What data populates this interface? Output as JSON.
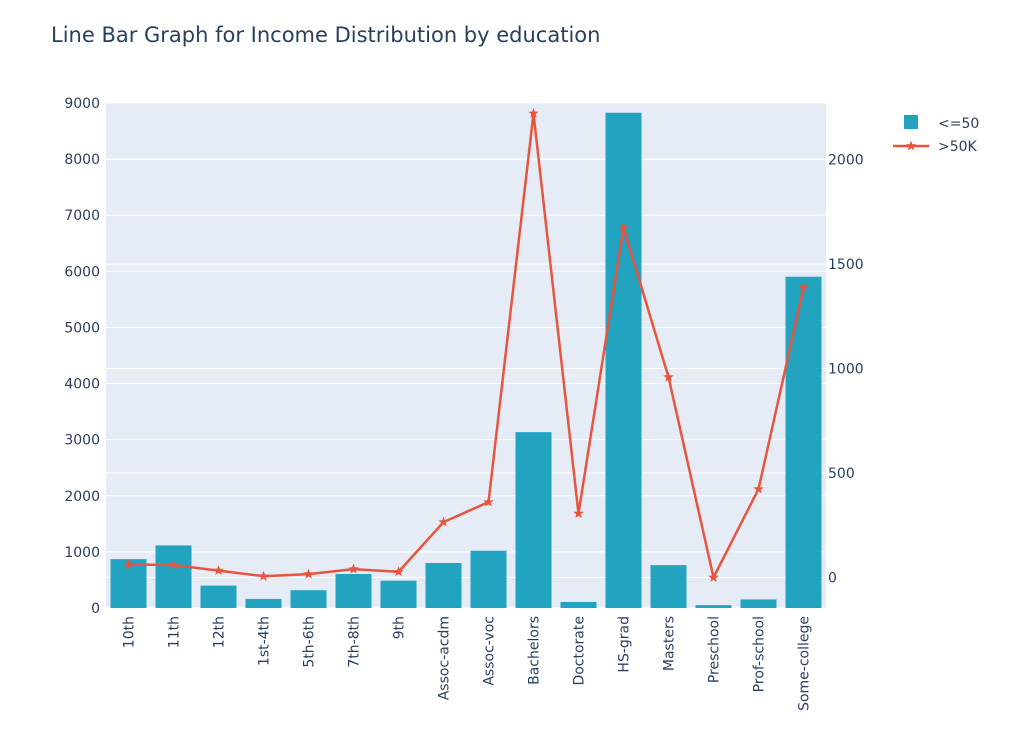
{
  "chart_data": {
    "type": "bar",
    "title": "Line Bar Graph for Income Distribution by education",
    "xlabel": "",
    "ylabel": "",
    "categories": [
      "10th",
      "11th",
      "12th",
      "1st-4th",
      "5th-6th",
      "7th-8th",
      "9th",
      "Assoc-acdm",
      "Assoc-voc",
      "Bachelors",
      "Doctorate",
      "HS-grad",
      "Masters",
      "Preschool",
      "Prof-school",
      "Some-college"
    ],
    "series": [
      {
        "name": "<=50",
        "type": "bar",
        "axis": "left",
        "color": "#22a4c1",
        "values": [
          871,
          1115,
          400,
          162,
          317,
          606,
          487,
          802,
          1021,
          3134,
          107,
          8826,
          764,
          51,
          153,
          5904
        ]
      },
      {
        "name": ">50K",
        "type": "line",
        "axis": "right",
        "marker": "star",
        "color": "#e8553e",
        "values": [
          62,
          60,
          33,
          6,
          16,
          40,
          27,
          265,
          361,
          2221,
          306,
          1675,
          959,
          0,
          423,
          1387
        ]
      }
    ],
    "ylim_left": [
      0,
      9000
    ],
    "yticks_left": [
      "0",
      "1000",
      "2000",
      "3000",
      "4000",
      "5000",
      "6000",
      "7000",
      "8000",
      "9000"
    ],
    "ylim_right": [
      -146,
      2271
    ],
    "yticks_right": [
      "0",
      "500",
      "1000",
      "1500",
      "2000"
    ],
    "grid": true,
    "legend": "top-right",
    "colors": {
      "plot_bg": "#e5ecf6",
      "grid": "#ffffff",
      "text": "#2a3f5f"
    }
  }
}
